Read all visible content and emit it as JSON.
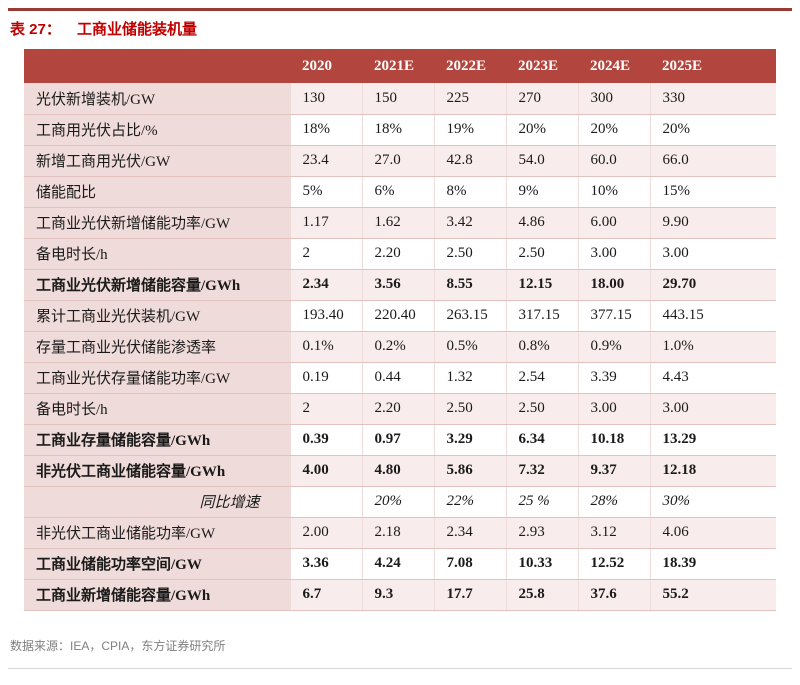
{
  "title": {
    "prefix": "表 27：",
    "text": "工商业储能装机量"
  },
  "table": {
    "corner": "",
    "years": [
      "2020",
      "2021E",
      "2022E",
      "2023E",
      "2024E",
      "2025E"
    ],
    "rows": [
      {
        "label": "光伏新增装机/GW",
        "values": [
          "130",
          "150",
          "225",
          "270",
          "300",
          "330"
        ]
      },
      {
        "label": "工商用光伏占比/%",
        "values": [
          "18%",
          "18%",
          "19%",
          "20%",
          "20%",
          "20%"
        ]
      },
      {
        "label": "新增工商用光伏/GW",
        "values": [
          "23.4",
          "27.0",
          "42.8",
          "54.0",
          "60.0",
          "66.0"
        ]
      },
      {
        "label": "储能配比",
        "values": [
          "5%",
          "6%",
          "8%",
          "9%",
          "10%",
          "15%"
        ]
      },
      {
        "label": "工商业光伏新增储能功率/GW",
        "values": [
          "1.17",
          "1.62",
          "3.42",
          "4.86",
          "6.00",
          "9.90"
        ]
      },
      {
        "label": "备电时长/h",
        "values": [
          "2",
          "2.20",
          "2.50",
          "2.50",
          "3.00",
          "3.00"
        ]
      },
      {
        "label": "工商业光伏新增储能容量/GWh",
        "values": [
          "2.34",
          "3.56",
          "8.55",
          "12.15",
          "18.00",
          "29.70"
        ],
        "bold": true
      },
      {
        "label": "累计工商业光伏装机/GW",
        "values": [
          "193.40",
          "220.40",
          "263.15",
          "317.15",
          "377.15",
          "443.15"
        ]
      },
      {
        "label": "存量工商业光伏储能渗透率",
        "values": [
          "0.1%",
          "0.2%",
          "0.5%",
          "0.8%",
          "0.9%",
          "1.0%"
        ]
      },
      {
        "label": "工商业光伏存量储能功率/GW",
        "values": [
          "0.19",
          "0.44",
          "1.32",
          "2.54",
          "3.39",
          "4.43"
        ]
      },
      {
        "label": "备电时长/h",
        "values": [
          "2",
          "2.20",
          "2.50",
          "2.50",
          "3.00",
          "3.00"
        ]
      },
      {
        "label": "工商业存量储能容量/GWh",
        "values": [
          "0.39",
          "0.97",
          "3.29",
          "6.34",
          "10.18",
          "13.29"
        ],
        "bold": true
      },
      {
        "label": "非光伏工商业储能容量/GWh",
        "values": [
          "4.00",
          "4.80",
          "5.86",
          "7.32",
          "9.37",
          "12.18"
        ],
        "bold": true
      },
      {
        "label": "同比增速",
        "values": [
          "",
          "20%",
          "22%",
          "25 %",
          "28%",
          "30%"
        ],
        "italic": true,
        "label_align": "right"
      },
      {
        "label": "非光伏工商业储能功率/GW",
        "values": [
          "2.00",
          "2.18",
          "2.34",
          "2.93",
          "3.12",
          "4.06"
        ]
      },
      {
        "label": "工商业储能功率空间/GW",
        "values": [
          "3.36",
          "4.24",
          "7.08",
          "10.33",
          "12.52",
          "18.39"
        ],
        "bold": true
      },
      {
        "label": "工商业新增储能容量/GWh",
        "values": [
          "6.7",
          "9.3",
          "17.7",
          "25.8",
          "37.6",
          "55.2"
        ],
        "bold": true
      }
    ]
  },
  "footer": {
    "source": "数据来源：IEA，CPIA，东方证券研究所"
  },
  "colors": {
    "header_bg": "#b2463f",
    "label_col_bg": "#efdbd9",
    "stripe_bg": "#f8edec",
    "title_red": "#c00000",
    "top_rule": "#9a3b33"
  }
}
